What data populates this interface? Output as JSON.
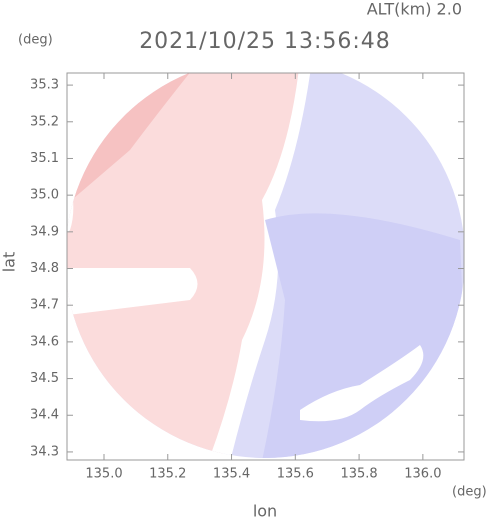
{
  "chart_data": {
    "type": "radar_map",
    "title": "2021/10/25 13:56:48",
    "subtitle": "ALT(km) 2.0",
    "xlabel": "lon",
    "ylabel": "lat",
    "x_unit": "(deg)",
    "y_unit": "(deg)",
    "xlim": [
      134.884,
      136.129
    ],
    "ylim": [
      34.278,
      35.333
    ],
    "xticks": [
      {
        "value": 135,
        "label": "135.0"
      },
      135.2,
      135.4,
      135.6,
      135.8,
      {
        "value": 136,
        "label": "136.0"
      }
    ],
    "yticks": [
      34.3,
      34.4,
      34.5,
      34.6,
      34.7,
      34.8,
      34.9,
      {
        "value": 35,
        "label": "35.0"
      },
      35.1,
      35.2,
      35.3
    ]
  }
}
